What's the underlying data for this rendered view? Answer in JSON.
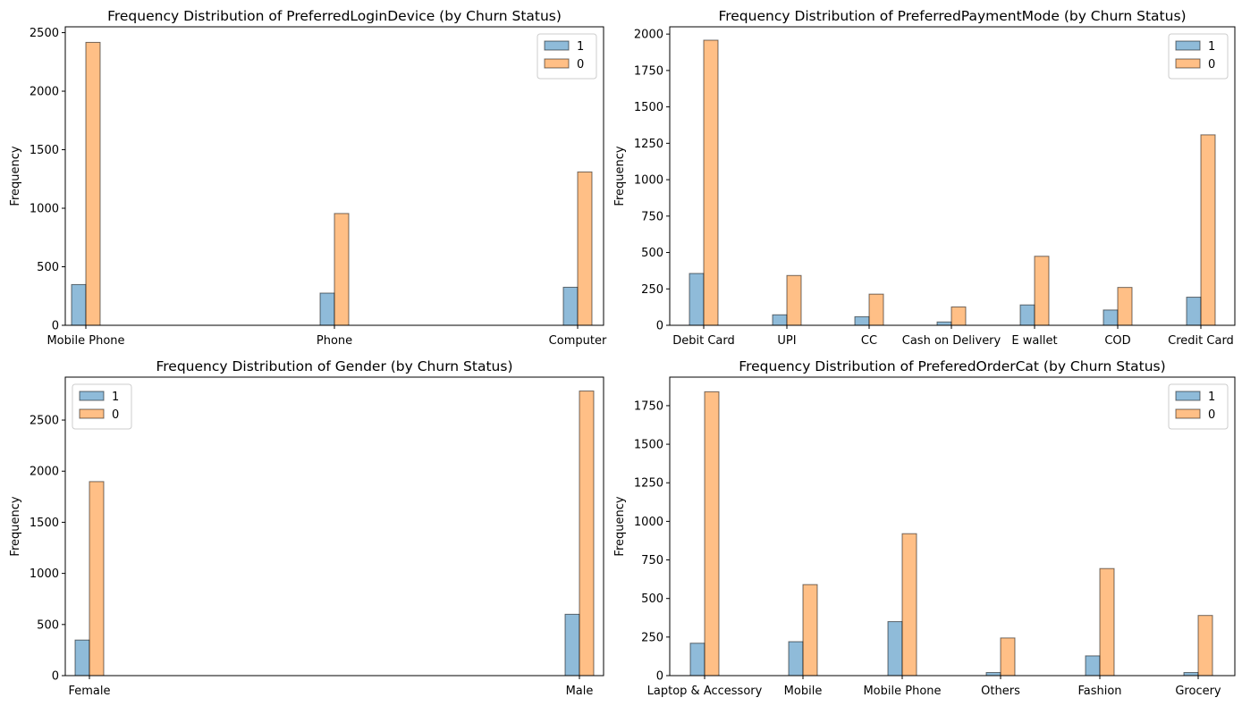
{
  "colors": {
    "churn_1": "#1f77b4",
    "churn_0": "#ff7f0e",
    "edge": "#000000"
  },
  "chart_data": [
    {
      "type": "bar",
      "title": "Frequency Distribution of PreferredLoginDevice (by Churn Status)",
      "xlabel": "",
      "ylabel": "Frequency",
      "categories": [
        "Mobile Phone",
        "Phone",
        "Computer"
      ],
      "series": [
        {
          "name": "1",
          "values": [
            348,
            275,
            325
          ]
        },
        {
          "name": "0",
          "values": [
            2417,
            955,
            1310
          ]
        }
      ],
      "ylim": [
        0,
        2550
      ],
      "yticks": [
        0,
        500,
        1000,
        1500,
        2000,
        2500
      ],
      "legend": "top-right",
      "grid": false
    },
    {
      "type": "bar",
      "title": "Frequency Distribution of PreferredPaymentMode (by Churn Status)",
      "xlabel": "",
      "ylabel": "Frequency",
      "categories": [
        "Debit Card",
        "UPI",
        "CC",
        "Cash on Delivery",
        "E wallet",
        "COD",
        "Credit Card"
      ],
      "series": [
        {
          "name": "1",
          "values": [
            356,
            72,
            59,
            23,
            140,
            105,
            193
          ]
        },
        {
          "name": "0",
          "values": [
            1958,
            342,
            214,
            126,
            474,
            260,
            1308
          ]
        }
      ],
      "ylim": [
        0,
        2050
      ],
      "yticks": [
        0,
        250,
        500,
        750,
        1000,
        1250,
        1500,
        1750,
        2000
      ],
      "legend": "top-right",
      "grid": false
    },
    {
      "type": "bar",
      "title": "Frequency Distribution of Gender (by Churn Status)",
      "xlabel": "",
      "ylabel": "Frequency",
      "categories": [
        "Female",
        "Male"
      ],
      "series": [
        {
          "name": "1",
          "values": [
            348,
            600
          ]
        },
        {
          "name": "0",
          "values": [
            1898,
            2784
          ]
        }
      ],
      "ylim": [
        0,
        2920
      ],
      "yticks": [
        0,
        500,
        1000,
        1500,
        2000,
        2500
      ],
      "legend": "top-left",
      "grid": false
    },
    {
      "type": "bar",
      "title": "Frequency Distribution of PreferedOrderCat (by Churn Status)",
      "xlabel": "",
      "ylabel": "Frequency",
      "categories": [
        "Laptop & Accessory",
        "Mobile",
        "Mobile Phone",
        "Others",
        "Fashion",
        "Grocery"
      ],
      "series": [
        {
          "name": "1",
          "values": [
            210,
            220,
            350,
            20,
            128,
            20
          ]
        },
        {
          "name": "0",
          "values": [
            1840,
            590,
            920,
            244,
            694,
            390
          ]
        }
      ],
      "ylim": [
        0,
        1935
      ],
      "yticks": [
        0,
        250,
        500,
        750,
        1000,
        1250,
        1500,
        1750
      ],
      "legend": "top-right",
      "grid": false
    }
  ]
}
